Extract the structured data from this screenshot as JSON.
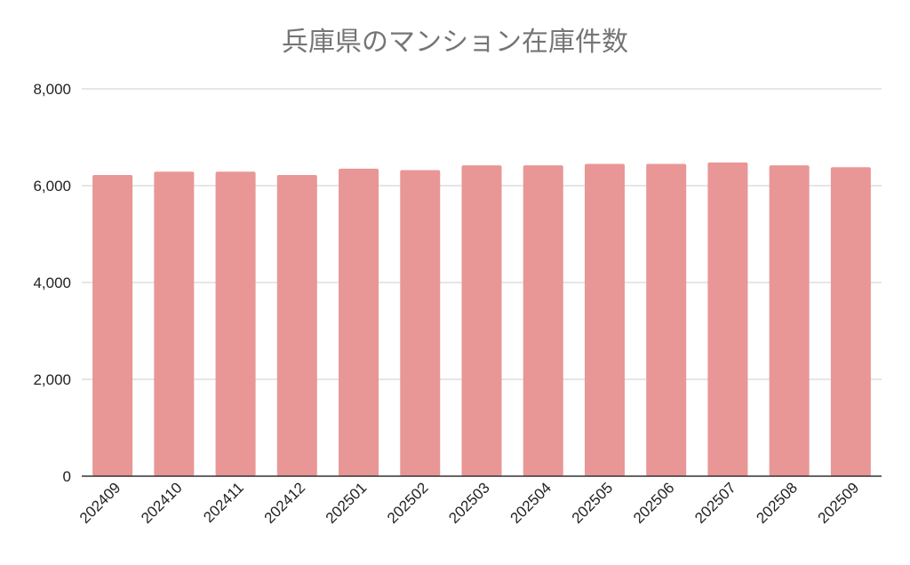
{
  "chart_data": {
    "type": "bar",
    "title": "兵庫県のマンション在庫件数",
    "xlabel": "",
    "ylabel": "",
    "categories": [
      "202409",
      "202410",
      "202411",
      "202412",
      "202501",
      "202502",
      "202503",
      "202504",
      "202505",
      "202506",
      "202507",
      "202508",
      "202509"
    ],
    "values": [
      6220,
      6290,
      6290,
      6220,
      6350,
      6320,
      6420,
      6420,
      6450,
      6450,
      6480,
      6420,
      6380
    ],
    "ylim": [
      0,
      8000
    ],
    "yticks": [
      0,
      2000,
      4000,
      6000,
      8000
    ],
    "ytick_labels": [
      "0",
      "2,000",
      "4,000",
      "6,000",
      "8,000"
    ],
    "grid": true,
    "legend": "none",
    "colors": {
      "bar": "#e99696"
    }
  }
}
